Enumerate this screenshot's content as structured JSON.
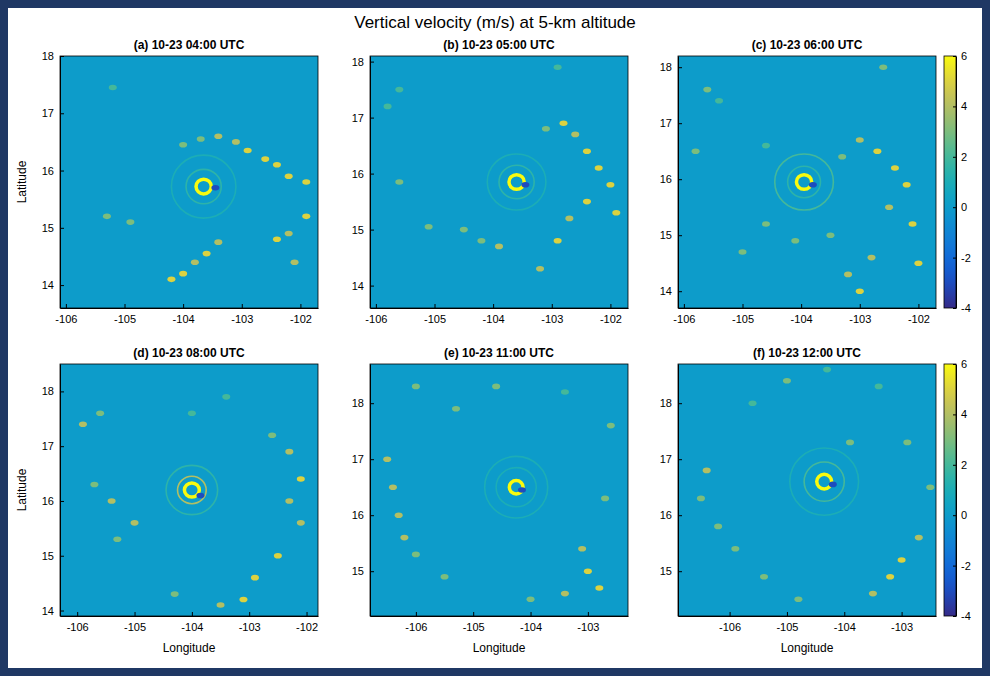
{
  "title": "Vertical velocity (m/s) at 5-km altitude",
  "chart_data": [
    {
      "type": "heatmap",
      "title": "(a) 10-23 04:00 UTC",
      "ylabel": "Latitude",
      "xlim": [
        -106.1,
        -101.7
      ],
      "ylim": [
        13.6,
        18
      ],
      "xticks": [
        -106,
        -105,
        -104,
        -103,
        -102
      ],
      "yticks": [
        14,
        15,
        16,
        17,
        18
      ],
      "background": 0,
      "eye": {
        "lon": -103.65,
        "lat": 15.72,
        "radius": [
          0.13,
          0.3,
          0.55
        ],
        "values": [
          6,
          1.5,
          1
        ]
      },
      "cells": {
        "lon": [
          -104.0,
          -103.7,
          -103.4,
          -103.1,
          -102.9,
          -102.6,
          -102.4,
          -102.2,
          -101.9,
          -104.2,
          -104.0,
          -103.8,
          -103.6,
          -103.4,
          -102.4,
          -102.2,
          -102.1,
          -101.9,
          -105.3,
          -104.9,
          -105.2,
          -103.45
        ],
        "lat": [
          16.45,
          16.55,
          16.6,
          16.5,
          16.35,
          16.2,
          16.1,
          15.9,
          15.8,
          14.1,
          14.2,
          14.4,
          14.55,
          14.75,
          14.8,
          14.9,
          14.4,
          15.2,
          15.2,
          15.1,
          17.45,
          15.7
        ],
        "values": [
          3,
          3,
          4,
          4,
          5,
          5,
          5,
          5,
          5,
          5,
          5,
          4,
          5,
          4,
          5,
          4,
          4,
          5,
          3,
          3,
          2,
          -3
        ]
      }
    },
    {
      "type": "heatmap",
      "title": "(b) 10-23 05:00 UTC",
      "xlim": [
        -106.1,
        -101.7
      ],
      "ylim": [
        13.6,
        18.1
      ],
      "xticks": [
        -106,
        -105,
        -104,
        -103,
        -102
      ],
      "yticks": [
        14,
        15,
        16,
        17,
        18
      ],
      "background": 0,
      "eye": {
        "lon": -103.6,
        "lat": 15.85,
        "radius": [
          0.13,
          0.3,
          0.5
        ],
        "values": [
          6,
          1.5,
          1
        ]
      },
      "cells": {
        "lon": [
          -103.1,
          -102.8,
          -102.6,
          -102.4,
          -102.2,
          -102.0,
          -101.9,
          -104.5,
          -104.2,
          -103.9,
          -103.2,
          -102.9,
          -102.7,
          -102.4,
          -105.6,
          -105.1,
          -105.8,
          -105.6,
          -102.9,
          -103.45
        ],
        "lat": [
          16.8,
          16.9,
          16.7,
          16.4,
          16.1,
          15.8,
          15.3,
          15.0,
          14.8,
          14.7,
          14.3,
          14.8,
          15.2,
          15.5,
          15.85,
          15.05,
          17.2,
          17.5,
          17.9,
          15.8
        ],
        "values": [
          3,
          5,
          4,
          5,
          5,
          5,
          5,
          3,
          3,
          4,
          4,
          5,
          4,
          5,
          3,
          3,
          2,
          2,
          2,
          -3
        ]
      }
    },
    {
      "type": "heatmap",
      "title": "(c) 10-23 06:00 UTC",
      "xlim": [
        -106.1,
        -101.7
      ],
      "ylim": [
        13.7,
        18.2
      ],
      "xticks": [
        -106,
        -105,
        -104,
        -103,
        -102
      ],
      "yticks": [
        14,
        15,
        16,
        17,
        18
      ],
      "background": 0,
      "eye": {
        "lon": -103.95,
        "lat": 15.95,
        "radius": [
          0.13,
          0.28,
          0.5
        ],
        "values": [
          6,
          1.5,
          2
        ]
      },
      "cells": {
        "lon": [
          -103.3,
          -103.0,
          -102.7,
          -102.4,
          -102.2,
          -102.5,
          -102.1,
          -102.0,
          -103.2,
          -103.0,
          -102.8,
          -103.5,
          -104.1,
          -104.6,
          -105.0,
          -105.8,
          -105.6,
          -105.4,
          -104.6,
          -102.6,
          -103.8
        ],
        "lat": [
          16.4,
          16.7,
          16.5,
          16.2,
          15.9,
          15.5,
          15.2,
          14.5,
          14.3,
          14.0,
          14.6,
          15.0,
          14.9,
          15.2,
          14.7,
          16.5,
          17.6,
          17.4,
          16.6,
          18.0,
          15.9
        ],
        "values": [
          3,
          4,
          5,
          5,
          5,
          4,
          5,
          5,
          4,
          5,
          4,
          3,
          3,
          3,
          3,
          3,
          3,
          2,
          2,
          3,
          -3
        ]
      },
      "colorbar": {
        "range": [
          -4,
          6
        ],
        "ticks": [
          -4,
          -2,
          0,
          2,
          4,
          6
        ]
      }
    },
    {
      "type": "heatmap",
      "title": "(d) 10-23 08:00 UTC",
      "xlabel": "Longitude",
      "ylabel": "Latitude",
      "xlim": [
        -106.3,
        -101.8
      ],
      "ylim": [
        13.9,
        18.5
      ],
      "xticks": [
        -106,
        -105,
        -104,
        -103,
        -102
      ],
      "yticks": [
        14,
        15,
        16,
        17,
        18
      ],
      "background": 0,
      "eye": {
        "lon": -104.0,
        "lat": 16.2,
        "radius": [
          0.13,
          0.25,
          0.45
        ],
        "values": [
          6,
          4,
          1.5
        ]
      },
      "cells": {
        "lon": [
          -105.9,
          -105.6,
          -105.7,
          -105.4,
          -105.0,
          -105.3,
          -102.6,
          -102.3,
          -102.1,
          -102.3,
          -102.1,
          -102.5,
          -102.9,
          -103.1,
          -103.5,
          -104.3,
          -104.0,
          -103.4,
          -103.85
        ],
        "lat": [
          17.4,
          17.6,
          16.3,
          16.0,
          15.6,
          15.3,
          17.2,
          16.9,
          16.4,
          16.0,
          15.6,
          15.0,
          14.6,
          14.2,
          14.1,
          14.3,
          17.6,
          17.9,
          16.1
        ],
        "values": [
          4,
          3,
          3,
          4,
          4,
          3,
          3,
          4,
          5,
          4,
          4,
          5,
          5,
          5,
          4,
          3,
          2,
          2,
          -3
        ]
      }
    },
    {
      "type": "heatmap",
      "title": "(e) 10-23 11:00 UTC",
      "xlabel": "Longitude",
      "xlim": [
        -106.8,
        -102.3
      ],
      "ylim": [
        14.2,
        18.7
      ],
      "xticks": [
        -106,
        -105,
        -104,
        -103
      ],
      "yticks": [
        15,
        16,
        17,
        18
      ],
      "background": 0,
      "eye": {
        "lon": -104.25,
        "lat": 16.5,
        "radius": [
          0.12,
          0.35,
          0.55
        ],
        "values": [
          6,
          1,
          1
        ]
      },
      "cells": {
        "lon": [
          -106.5,
          -106.4,
          -106.3,
          -106.2,
          -106.0,
          -105.5,
          -106.0,
          -105.3,
          -104.6,
          -103.4,
          -102.6,
          -102.7,
          -103.1,
          -103.0,
          -102.8,
          -103.4,
          -104.0,
          -104.15
        ],
        "lat": [
          17.0,
          16.5,
          16.0,
          15.6,
          15.3,
          14.9,
          18.3,
          17.9,
          18.3,
          18.2,
          17.6,
          16.3,
          15.4,
          15.0,
          14.7,
          14.6,
          14.5,
          16.45
        ],
        "values": [
          4,
          4,
          4,
          4,
          3,
          3,
          3,
          3,
          3,
          2,
          3,
          3,
          4,
          5,
          5,
          4,
          3,
          -3
        ]
      }
    },
    {
      "type": "heatmap",
      "title": "(f) 10-23 12:00 UTC",
      "xlabel": "Longitude",
      "xlim": [
        -106.9,
        -102.4
      ],
      "ylim": [
        14.2,
        18.7
      ],
      "xticks": [
        -106,
        -105,
        -104,
        -103
      ],
      "yticks": [
        15,
        16,
        17,
        18
      ],
      "background": 0,
      "eye": {
        "lon": -104.35,
        "lat": 16.6,
        "radius": [
          0.13,
          0.35,
          0.6
        ],
        "values": [
          6,
          2,
          1
        ]
      },
      "cells": {
        "lon": [
          -106.4,
          -106.5,
          -106.2,
          -105.9,
          -105.4,
          -104.8,
          -105.0,
          -105.6,
          -104.3,
          -103.4,
          -102.9,
          -102.5,
          -102.7,
          -103.0,
          -103.2,
          -103.5,
          -103.9,
          -104.2
        ],
        "lat": [
          16.8,
          16.3,
          15.8,
          15.4,
          14.9,
          14.5,
          18.4,
          18.0,
          18.6,
          18.3,
          17.3,
          16.5,
          15.6,
          15.2,
          14.9,
          14.6,
          17.3,
          16.55
        ],
        "values": [
          4,
          3,
          3,
          3,
          3,
          3,
          3,
          2,
          2,
          2,
          3,
          3,
          4,
          5,
          5,
          4,
          3,
          -3
        ]
      },
      "colorbar": {
        "range": [
          -4,
          6
        ],
        "ticks": [
          -4,
          -2,
          0,
          2,
          4,
          6
        ]
      }
    }
  ]
}
